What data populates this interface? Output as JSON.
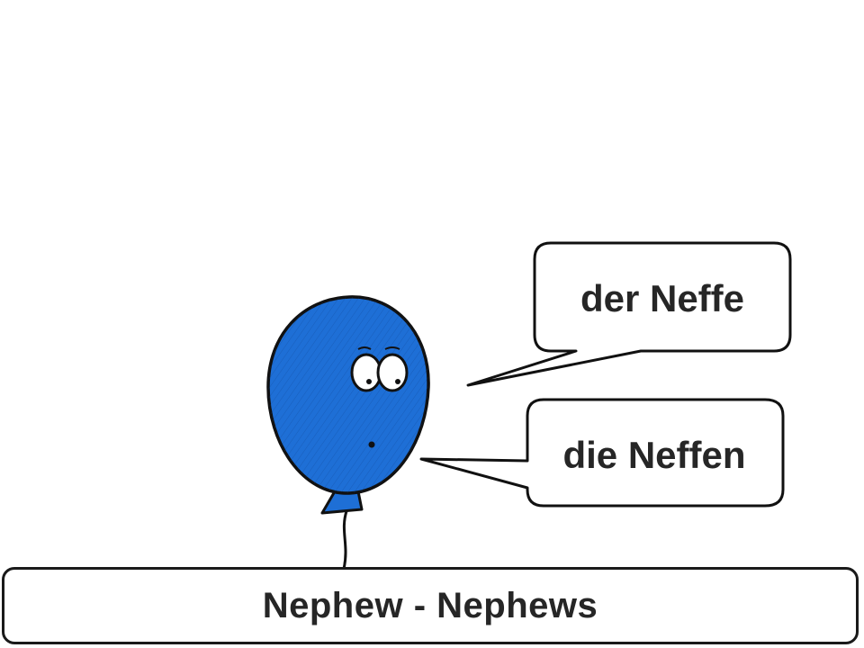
{
  "bubbles": {
    "singular": "der Neffe",
    "plural": "die Neffen"
  },
  "caption": "Nephew - Nephews",
  "colors": {
    "balloon": "#1e6fd6",
    "outline": "#111111",
    "text": "#262626"
  }
}
